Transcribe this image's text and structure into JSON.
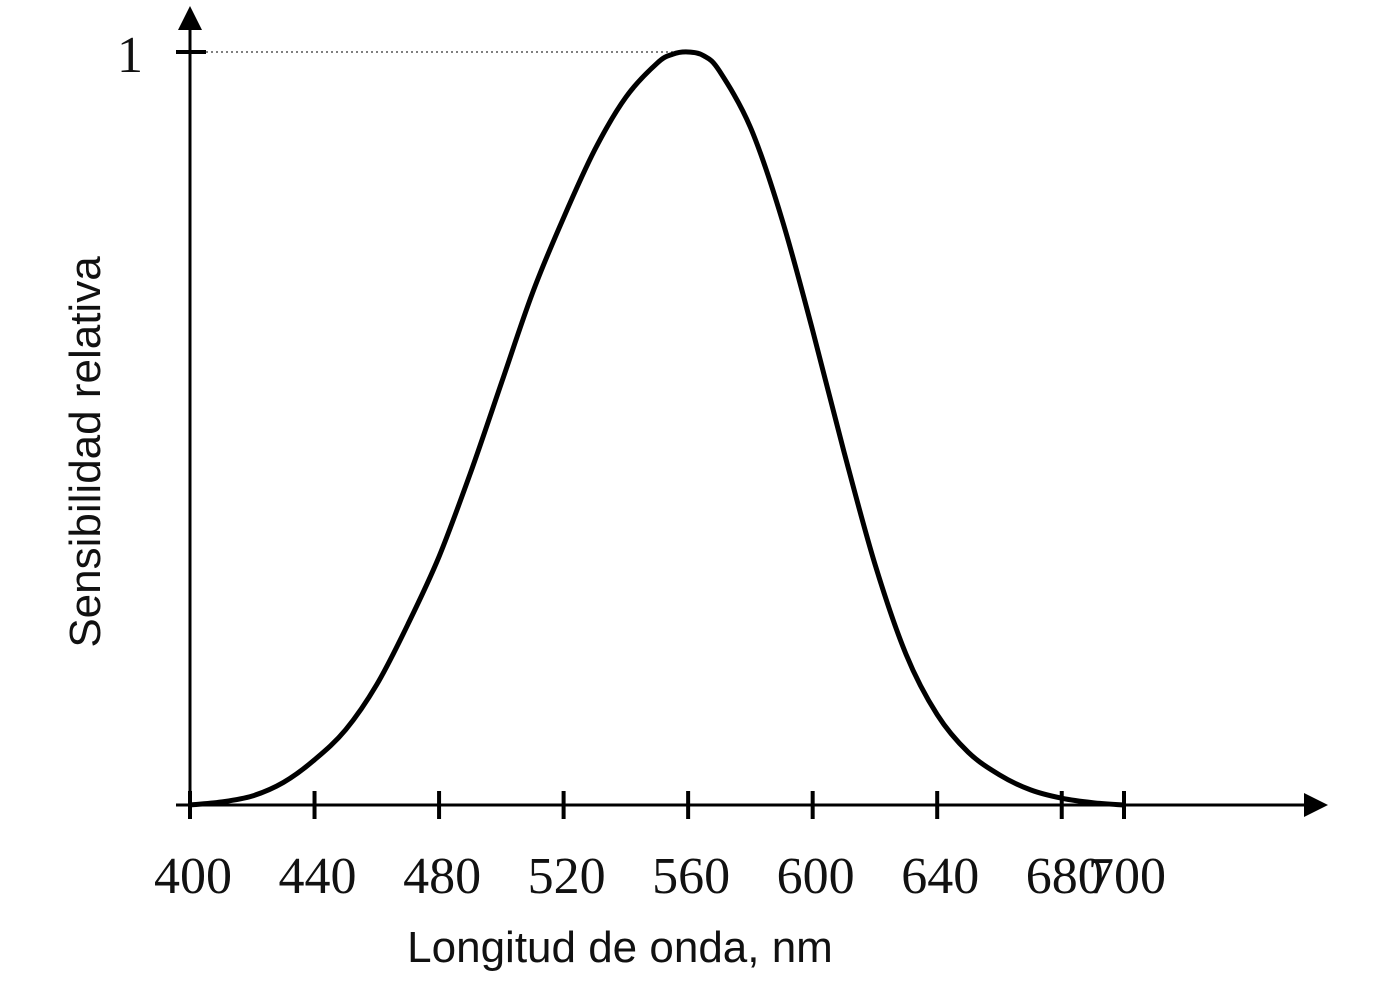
{
  "chart_data": {
    "type": "line",
    "title": "",
    "xlabel": "Longitud de onda, nm",
    "ylabel": "Sensibilidad relativa",
    "xticks": [
      400,
      440,
      480,
      520,
      560,
      600,
      640,
      680,
      700
    ],
    "yticks": [
      1
    ],
    "ylim": [
      0,
      1
    ],
    "grid": false,
    "reference_line": {
      "y": 1,
      "x_end": 560,
      "style": "dotted"
    },
    "series": [
      {
        "color": "#000000",
        "x": [
          400,
          410,
          420,
          430,
          440,
          450,
          460,
          470,
          480,
          490,
          500,
          510,
          520,
          530,
          540,
          550,
          555,
          560,
          565,
          570,
          580,
          590,
          600,
          610,
          620,
          630,
          640,
          650,
          660,
          670,
          680,
          690,
          700
        ],
        "y": [
          0.0,
          0.004,
          0.012,
          0.03,
          0.06,
          0.1,
          0.16,
          0.24,
          0.33,
          0.44,
          0.56,
          0.68,
          0.78,
          0.87,
          0.94,
          0.985,
          0.997,
          1.0,
          0.995,
          0.975,
          0.9,
          0.78,
          0.63,
          0.47,
          0.32,
          0.2,
          0.12,
          0.07,
          0.04,
          0.02,
          0.009,
          0.003,
          0.0
        ]
      }
    ]
  }
}
